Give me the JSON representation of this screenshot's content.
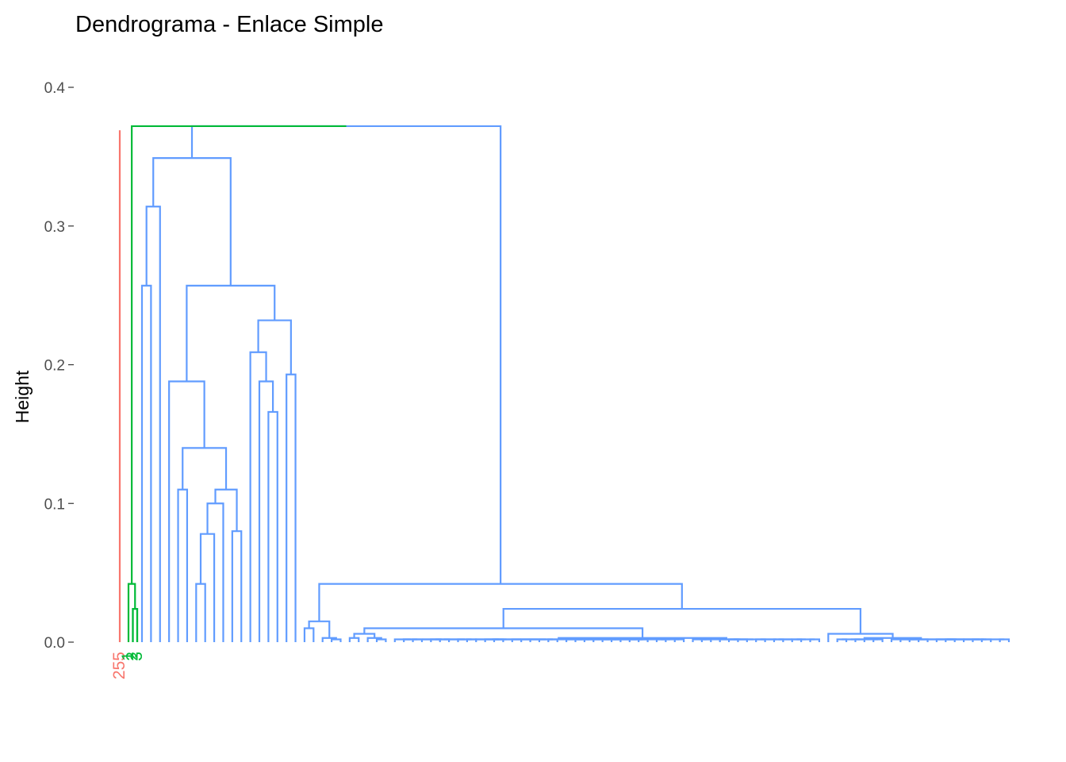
{
  "chart_data": {
    "type": "dendrogram",
    "title": "Dendrograma - Enlace Simple",
    "xlabel": "",
    "ylabel": "Height",
    "ylim": [
      0,
      0.4
    ],
    "yticks": [
      "0.0",
      "0.1",
      "0.2",
      "0.3",
      "0.4"
    ],
    "grid": false,
    "legend": "none",
    "colors": {
      "red": "#f8766d",
      "green": "#00ba38",
      "blue": "#619cff",
      "black": "#000000",
      "axis": "#333333"
    },
    "root": {
      "height": 0.405
    },
    "clusters": [
      {
        "color": "red",
        "leaves": [
          "255"
        ],
        "merge_height": 0.369
      },
      {
        "color": "green",
        "leaves": [
          "1",
          "2",
          "3"
        ],
        "merge_height": 0.042,
        "inner_height": 0.024
      },
      {
        "color": "blue",
        "leaf_count": 97,
        "merge_height": 0.372
      }
    ],
    "merge_heights": [
      0.372,
      0.37,
      0.367,
      0.364,
      0.362,
      0.36,
      0.358,
      0.356,
      0.349,
      0.344,
      0.335,
      0.325,
      0.32,
      0.314,
      0.306,
      0.288,
      0.27,
      0.268,
      0.264,
      0.258,
      0.257,
      0.251,
      0.243,
      0.24,
      0.238,
      0.232,
      0.224,
      0.22,
      0.21,
      0.209,
      0.2,
      0.193,
      0.19,
      0.188,
      0.18,
      0.177,
      0.172,
      0.167,
      0.166,
      0.159,
      0.157,
      0.153,
      0.15,
      0.14,
      0.137,
      0.13,
      0.126,
      0.121,
      0.118,
      0.11,
      0.106,
      0.1,
      0.097,
      0.092,
      0.089,
      0.085,
      0.083,
      0.08,
      0.078,
      0.074,
      0.07,
      0.065,
      0.06,
      0.055,
      0.05,
      0.047,
      0.042,
      0.038,
      0.033,
      0.028,
      0.024,
      0.02,
      0.015,
      0.01,
      0.006,
      0.003
    ]
  }
}
